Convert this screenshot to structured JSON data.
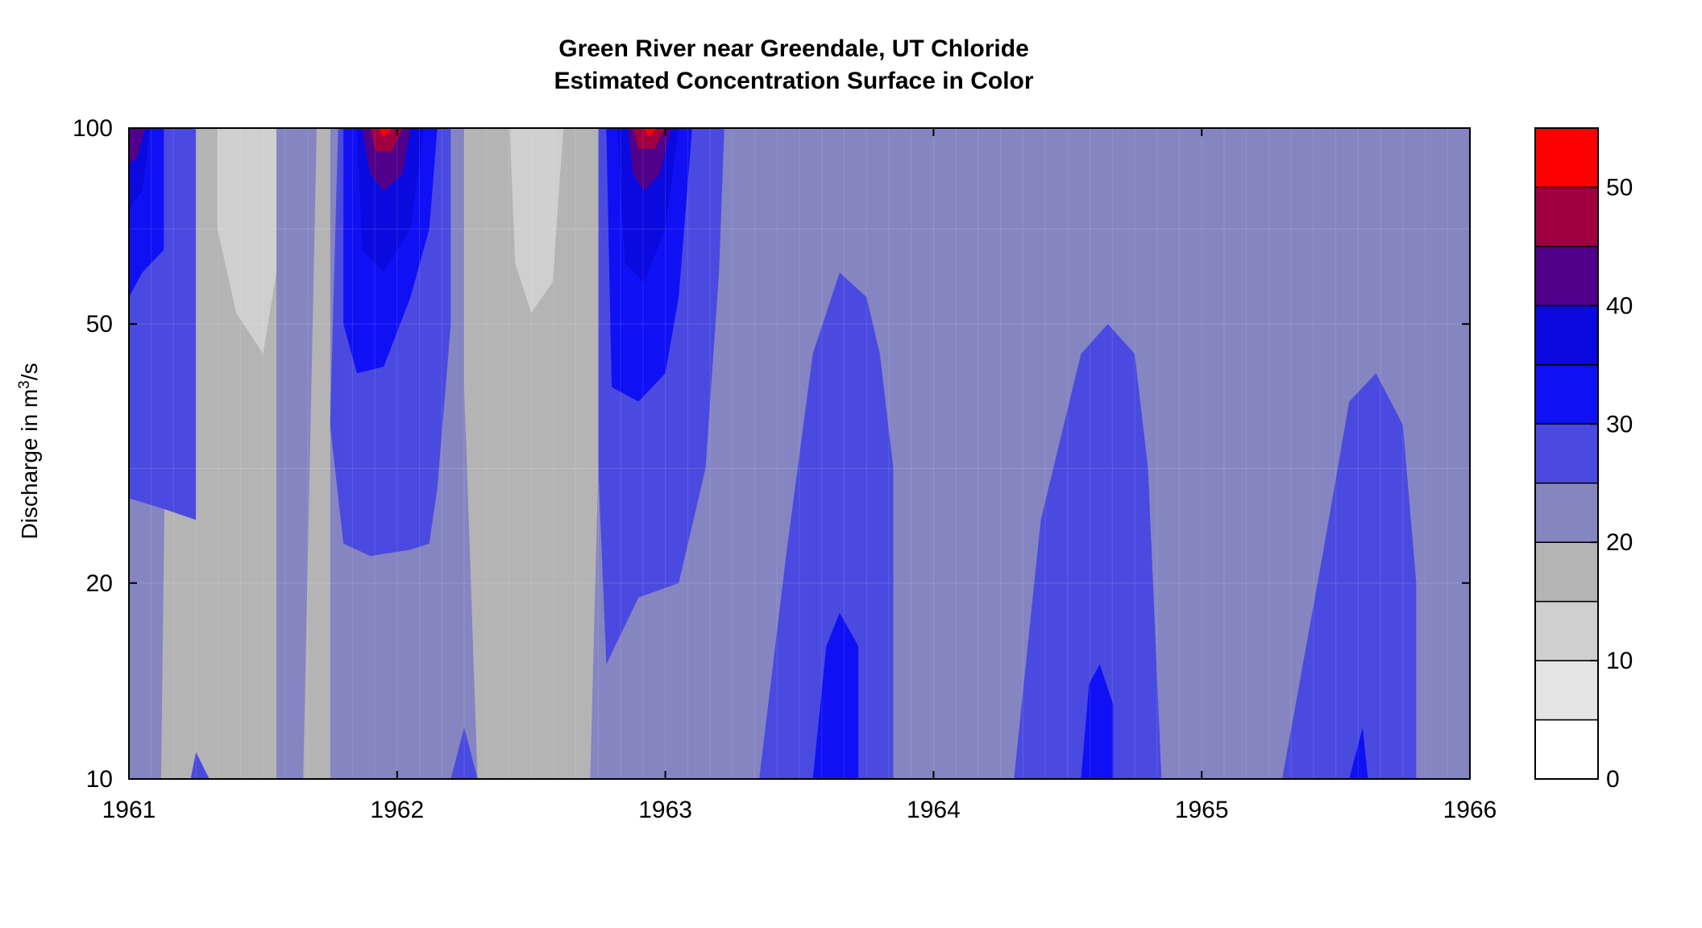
{
  "chart_data": {
    "type": "heatmap",
    "title": "Green River near Greendale, UT   Chloride",
    "subtitle": "Estimated Concentration Surface in Color",
    "ylabel": {
      "prefix": "Discharge in m",
      "sup": "3",
      "suffix": "/s"
    },
    "xlim": [
      1961,
      1966
    ],
    "ylim": [
      10,
      100
    ],
    "yscale": "log",
    "x_ticks": [
      "1961",
      "1962",
      "1963",
      "1964",
      "1965",
      "1966"
    ],
    "y_ticks": [
      "10",
      "20",
      "50",
      "100"
    ],
    "colorbar": {
      "levels": [
        0,
        5,
        10,
        15,
        20,
        25,
        30,
        35,
        40,
        45,
        50,
        55
      ],
      "colors": [
        "#ffffff",
        "#e4e4e4",
        "#cfcfcf",
        "#b4b4b4",
        "#8585c2",
        "#4a4ae0",
        "#1010f5",
        "#0a0ae0",
        "#50008a",
        "#a00040",
        "#ff0000"
      ],
      "tick_labels": [
        "0",
        "10",
        "20",
        "30",
        "40",
        "50"
      ]
    },
    "background_level": "20-25",
    "regions": [
      {
        "band": "15-20",
        "points": [
          [
            1961.15,
            100
          ],
          [
            1961.55,
            100
          ],
          [
            1961.55,
            10
          ],
          [
            1961.12,
            10
          ]
        ]
      },
      {
        "band": "15-20",
        "points": [
          [
            1961.7,
            100
          ],
          [
            1961.75,
            100
          ],
          [
            1961.75,
            10
          ],
          [
            1961.65,
            10
          ]
        ]
      },
      {
        "band": "15-20",
        "points": [
          [
            1962.25,
            100
          ],
          [
            1962.8,
            100
          ],
          [
            1962.75,
            30
          ],
          [
            1962.72,
            10
          ],
          [
            1962.3,
            10
          ],
          [
            1962.25,
            40
          ]
        ]
      },
      {
        "band": "10-15",
        "points": [
          [
            1961.33,
            100
          ],
          [
            1961.55,
            100
          ],
          [
            1961.55,
            60
          ],
          [
            1961.5,
            45
          ],
          [
            1961.4,
            52
          ],
          [
            1961.33,
            70
          ]
        ]
      },
      {
        "band": "10-15",
        "points": [
          [
            1962.42,
            100
          ],
          [
            1962.62,
            100
          ],
          [
            1962.58,
            58
          ],
          [
            1962.5,
            52
          ],
          [
            1962.44,
            62
          ]
        ]
      },
      {
        "band": "25-30",
        "points": [
          [
            1961,
            100
          ],
          [
            1961.25,
            100
          ],
          [
            1961.25,
            25
          ],
          [
            1961.13,
            26
          ],
          [
            1961,
            27
          ]
        ]
      },
      {
        "band": "25-30",
        "points": [
          [
            1961.78,
            100
          ],
          [
            1962.2,
            100
          ],
          [
            1962.2,
            50
          ],
          [
            1962.15,
            28
          ],
          [
            1962.12,
            23
          ],
          [
            1962.05,
            22.5
          ],
          [
            1961.9,
            22
          ],
          [
            1961.8,
            23
          ],
          [
            1961.75,
            35
          ]
        ]
      },
      {
        "band": "25-30",
        "points": [
          [
            1962.75,
            100
          ],
          [
            1963.22,
            100
          ],
          [
            1963.2,
            60
          ],
          [
            1963.15,
            30
          ],
          [
            1963.05,
            20
          ],
          [
            1962.9,
            19
          ],
          [
            1962.78,
            15
          ],
          [
            1962.75,
            30
          ]
        ]
      },
      {
        "band": "25-30",
        "points": [
          [
            1963.35,
            10
          ],
          [
            1963.45,
            22
          ],
          [
            1963.55,
            45
          ],
          [
            1963.65,
            60
          ],
          [
            1963.75,
            55
          ],
          [
            1963.8,
            45
          ],
          [
            1963.85,
            30
          ],
          [
            1963.85,
            10
          ]
        ]
      },
      {
        "band": "25-30",
        "points": [
          [
            1964.3,
            10
          ],
          [
            1964.4,
            25
          ],
          [
            1964.55,
            45
          ],
          [
            1964.65,
            50
          ],
          [
            1964.75,
            45
          ],
          [
            1964.8,
            30
          ],
          [
            1964.85,
            10
          ]
        ]
      },
      {
        "band": "25-30",
        "points": [
          [
            1965.3,
            10
          ],
          [
            1965.45,
            22
          ],
          [
            1965.55,
            38
          ],
          [
            1965.65,
            42
          ],
          [
            1965.75,
            35
          ],
          [
            1965.8,
            20
          ],
          [
            1965.8,
            10
          ]
        ]
      },
      {
        "band": "25-30",
        "points": [
          [
            1961.23,
            10
          ],
          [
            1961.25,
            11
          ],
          [
            1961.3,
            10
          ]
        ]
      },
      {
        "band": "25-30",
        "points": [
          [
            1962.2,
            10
          ],
          [
            1962.25,
            12
          ],
          [
            1962.3,
            10
          ]
        ]
      },
      {
        "band": "30-35",
        "points": [
          [
            1961,
            100
          ],
          [
            1961.13,
            100
          ],
          [
            1961.13,
            65
          ],
          [
            1961.05,
            60
          ],
          [
            1961,
            55
          ]
        ]
      },
      {
        "band": "30-35",
        "points": [
          [
            1961.8,
            100
          ],
          [
            1962.15,
            100
          ],
          [
            1962.12,
            70
          ],
          [
            1962.05,
            55
          ],
          [
            1961.95,
            43
          ],
          [
            1961.85,
            42
          ],
          [
            1961.8,
            50
          ]
        ]
      },
      {
        "band": "30-35",
        "points": [
          [
            1962.78,
            100
          ],
          [
            1963.1,
            100
          ],
          [
            1963.05,
            55
          ],
          [
            1963,
            42
          ],
          [
            1962.9,
            38
          ],
          [
            1962.8,
            40
          ]
        ]
      },
      {
        "band": "30-35",
        "points": [
          [
            1963.55,
            10
          ],
          [
            1963.6,
            16
          ],
          [
            1963.65,
            18
          ],
          [
            1963.72,
            16
          ],
          [
            1963.72,
            10
          ]
        ]
      },
      {
        "band": "30-35",
        "points": [
          [
            1964.55,
            10
          ],
          [
            1964.58,
            14
          ],
          [
            1964.62,
            15
          ],
          [
            1964.67,
            13
          ],
          [
            1964.67,
            10
          ]
        ]
      },
      {
        "band": "30-35",
        "points": [
          [
            1965.55,
            10
          ],
          [
            1965.6,
            12
          ],
          [
            1965.62,
            10
          ]
        ]
      },
      {
        "band": "35-40",
        "points": [
          [
            1961.85,
            100
          ],
          [
            1962.1,
            100
          ],
          [
            1962.05,
            70
          ],
          [
            1961.95,
            60
          ],
          [
            1961.87,
            65
          ]
        ]
      },
      {
        "band": "35-40",
        "points": [
          [
            1962.82,
            100
          ],
          [
            1963.05,
            100
          ],
          [
            1963,
            70
          ],
          [
            1962.92,
            58
          ],
          [
            1962.85,
            62
          ]
        ]
      },
      {
        "band": "35-40",
        "points": [
          [
            1961,
            100
          ],
          [
            1961.08,
            100
          ],
          [
            1961.05,
            80
          ],
          [
            1961,
            75
          ]
        ]
      },
      {
        "band": "40-45",
        "points": [
          [
            1961,
            100
          ],
          [
            1961.06,
            100
          ],
          [
            1961.03,
            90
          ],
          [
            1961,
            88
          ]
        ]
      },
      {
        "band": "40-45",
        "points": [
          [
            1961.87,
            100
          ],
          [
            1962.05,
            100
          ],
          [
            1962.02,
            85
          ],
          [
            1961.95,
            80
          ],
          [
            1961.9,
            85
          ]
        ]
      },
      {
        "band": "40-45",
        "points": [
          [
            1962.86,
            100
          ],
          [
            1963.02,
            100
          ],
          [
            1962.98,
            85
          ],
          [
            1962.92,
            80
          ],
          [
            1962.88,
            85
          ]
        ]
      },
      {
        "band": "45-50",
        "points": [
          [
            1961.9,
            100
          ],
          [
            1962.02,
            100
          ],
          [
            1961.98,
            92
          ],
          [
            1961.92,
            92
          ]
        ]
      },
      {
        "band": "45-50",
        "points": [
          [
            1962.88,
            100
          ],
          [
            1963,
            100
          ],
          [
            1962.96,
            93
          ],
          [
            1962.9,
            93
          ]
        ]
      },
      {
        "band": "50-55",
        "points": [
          [
            1961.93,
            100
          ],
          [
            1961.98,
            100
          ],
          [
            1961.95,
            97
          ]
        ]
      },
      {
        "band": "50-55",
        "points": [
          [
            1962.92,
            100
          ],
          [
            1962.97,
            100
          ],
          [
            1962.94,
            97
          ]
        ]
      }
    ]
  }
}
